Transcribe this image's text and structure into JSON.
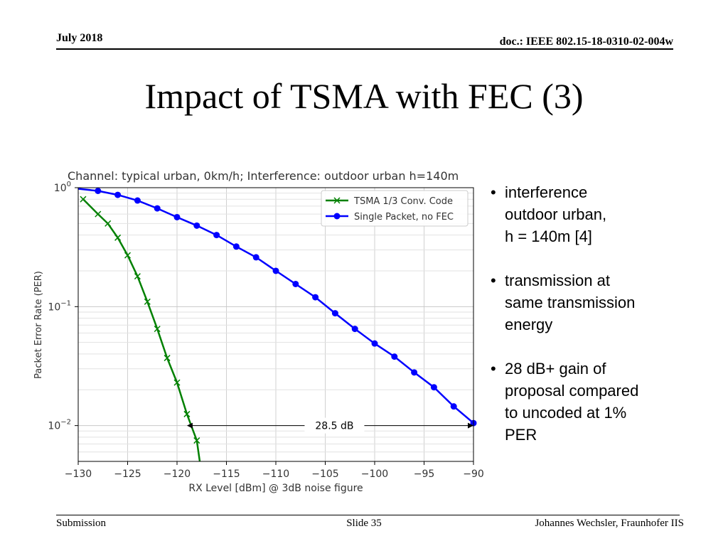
{
  "header": {
    "date": "July 2018",
    "doc": "doc.: IEEE 802.15-18-0310-02-004w"
  },
  "slide": {
    "title": "Impact of TSMA with FEC (3)"
  },
  "bullets": [
    {
      "lines": [
        "interference",
        "outdoor urban,",
        "h = 140m [4]"
      ]
    },
    {
      "lines": [
        "transmission at",
        "same transmission",
        "energy"
      ]
    },
    {
      "lines": [
        "28 dB+ gain of",
        "proposal compared",
        "to uncoded at 1%",
        "PER"
      ]
    }
  ],
  "footer": {
    "left": "Submission",
    "center": "Slide 35",
    "right": "Johannes Wechsler, Fraunhofer IIS"
  },
  "chart_data": {
    "type": "line",
    "title": "Channel: typical urban, 0km/h; Interference: outdoor urban h=140m",
    "xlabel": "RX Level [dBm] @ 3dB noise figure",
    "ylabel": "Packet Error Rate (PER)",
    "xlim": [
      -130,
      -90
    ],
    "ylim": [
      0.005,
      1.0
    ],
    "yscale": "log",
    "grid": true,
    "legend": "top-right",
    "xticks": [
      -130,
      -125,
      -120,
      -115,
      -110,
      -105,
      -100,
      -95,
      -90
    ],
    "yticks": [
      {
        "value": 1,
        "base": "10",
        "exp": "0"
      },
      {
        "value": 0.1,
        "base": "10",
        "exp": "−1"
      },
      {
        "value": 0.01,
        "base": "10",
        "exp": "−2"
      }
    ],
    "series": [
      {
        "name": "TSMA 1/3 Conv. Code",
        "color": "#008000",
        "marker": "x",
        "x": [
          -129.5,
          -128.0,
          -127.0,
          -126.0,
          -125.0,
          -124.0,
          -123.0,
          -122.0,
          -121.0,
          -120.0,
          -119.0,
          -118.0
        ],
        "y": [
          0.8,
          0.6,
          0.5,
          0.38,
          0.27,
          0.18,
          0.11,
          0.065,
          0.037,
          0.023,
          0.0125,
          0.0075
        ],
        "x_end": -117.7,
        "y_end": 0.005
      },
      {
        "name": "Single Packet, no FEC",
        "color": "#0000ff",
        "marker": "o",
        "x": [
          -128.0,
          -126.0,
          -124.0,
          -122.0,
          -120.0,
          -118.0,
          -116.0,
          -114.0,
          -112.0,
          -110.0,
          -108.0,
          -106.0,
          -104.0,
          -102.0,
          -100.0,
          -98.0,
          -96.0,
          -94.0,
          -92.0,
          -90.0
        ],
        "y": [
          0.94,
          0.87,
          0.78,
          0.67,
          0.565,
          0.48,
          0.4,
          0.32,
          0.26,
          0.2,
          0.155,
          0.12,
          0.088,
          0.065,
          0.049,
          0.038,
          0.028,
          0.021,
          0.0145,
          0.0105
        ],
        "x_start": -130.0,
        "y_start": 0.98
      }
    ],
    "annotation": {
      "text": "28.5 dB",
      "x_from": -119.0,
      "x_to": -90.0,
      "y": 0.01
    }
  }
}
